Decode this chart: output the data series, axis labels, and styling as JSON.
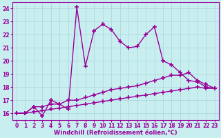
{
  "background_color": "#c8eef0",
  "plot_bg_color": "#c8eef0",
  "grid_color": "#b0d8dc",
  "line_color": "#990099",
  "xlabel": "Windchill (Refroidissement éolien,°C)",
  "xlim": [
    -0.5,
    23.5
  ],
  "ylim": [
    15.5,
    24.5
  ],
  "yticks": [
    16,
    17,
    18,
    19,
    20,
    21,
    22,
    23,
    24
  ],
  "xticks": [
    0,
    1,
    2,
    3,
    4,
    5,
    6,
    7,
    8,
    9,
    10,
    11,
    12,
    13,
    14,
    15,
    16,
    17,
    18,
    19,
    20,
    21,
    22,
    23
  ],
  "series1_x": [
    0,
    1,
    2,
    3,
    4,
    5,
    6,
    7,
    8,
    9,
    10,
    11,
    12,
    13,
    14,
    15,
    16,
    17,
    18,
    19,
    20,
    21,
    22,
    23
  ],
  "series1_y": [
    16.0,
    16.0,
    16.5,
    15.8,
    17.0,
    16.7,
    16.3,
    24.1,
    19.6,
    22.3,
    22.8,
    22.4,
    21.5,
    21.0,
    21.1,
    22.0,
    22.6,
    20.0,
    19.7,
    19.1,
    18.5,
    18.4,
    18.0,
    17.9
  ],
  "series2_x": [
    0,
    1,
    2,
    3,
    4,
    5,
    6,
    7,
    8,
    9,
    10,
    11,
    12,
    13,
    14,
    15,
    16,
    17,
    18,
    19,
    20,
    21,
    22,
    23
  ],
  "series2_y": [
    16.0,
    16.0,
    16.5,
    16.5,
    16.7,
    16.7,
    17.0,
    17.0,
    17.2,
    17.4,
    17.6,
    17.8,
    17.9,
    18.0,
    18.1,
    18.3,
    18.5,
    18.7,
    18.9,
    18.9,
    19.1,
    18.5,
    18.2,
    17.9
  ],
  "series3_x": [
    0,
    1,
    2,
    3,
    4,
    5,
    6,
    7,
    8,
    9,
    10,
    11,
    12,
    13,
    14,
    15,
    16,
    17,
    18,
    19,
    20,
    21,
    22,
    23
  ],
  "series3_y": [
    16.0,
    16.0,
    16.1,
    16.2,
    16.3,
    16.4,
    16.5,
    16.6,
    16.7,
    16.8,
    16.9,
    17.0,
    17.1,
    17.2,
    17.3,
    17.4,
    17.5,
    17.6,
    17.7,
    17.8,
    17.9,
    18.0,
    17.9,
    17.9
  ],
  "marker": "+",
  "markersize": 4,
  "linewidth": 1.0,
  "xlabel_fontsize": 6,
  "tick_fontsize": 5.5
}
